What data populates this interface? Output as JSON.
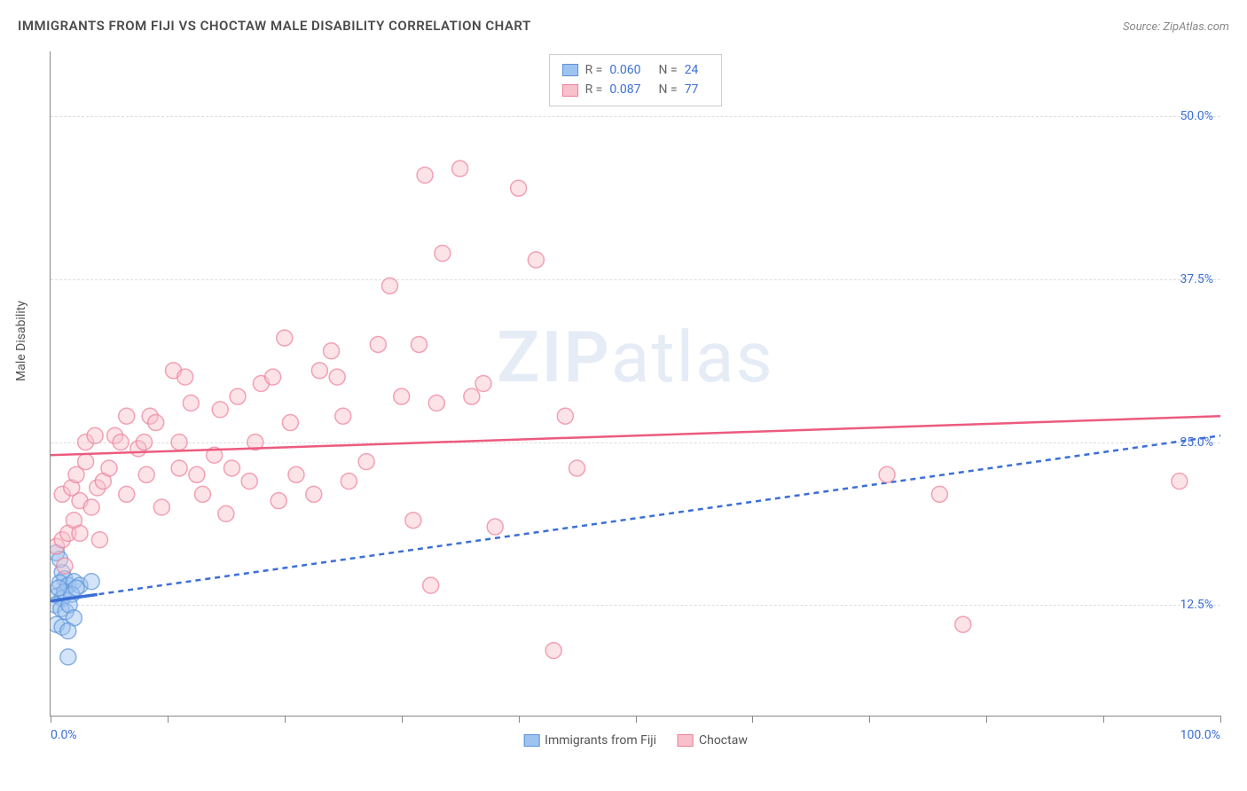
{
  "title": "IMMIGRANTS FROM FIJI VS CHOCTAW MALE DISABILITY CORRELATION CHART",
  "source": "Source: ZipAtlas.com",
  "watermark_zip": "ZIP",
  "watermark_atlas": "atlas",
  "ylabel": "Male Disability",
  "chart": {
    "type": "scatter",
    "background_color": "#ffffff",
    "grid_color": "#dddddd",
    "axis_color": "#888888",
    "xlim": [
      0,
      100
    ],
    "ylim": [
      4,
      55
    ],
    "xticks": [
      0,
      10,
      20,
      30,
      40,
      50,
      60,
      70,
      80,
      90,
      100
    ],
    "xtick_labels": {
      "0": "0.0%",
      "100": "100.0%"
    },
    "yticks": [
      12.5,
      25.0,
      37.5,
      50.0
    ],
    "ytick_labels": [
      "12.5%",
      "25.0%",
      "37.5%",
      "50.0%"
    ],
    "point_radius": 9,
    "point_opacity": 0.45,
    "point_stroke_width": 1.5,
    "trend_line_width": 2.5,
    "series": [
      {
        "name": "Immigrants from Fiji",
        "color_fill": "#9dc3f0",
        "color_stroke": "#5b93d8",
        "trend_color": "#3b6fd6",
        "trend_dash": "6,5",
        "R": "0.060",
        "N": "24",
        "trend": {
          "x1": 0,
          "y1": 12.8,
          "x2": 100,
          "y2": 25.5
        },
        "solid_segment": {
          "x1": 0,
          "y1": 12.8,
          "x2": 4,
          "y2": 13.3
        },
        "points": [
          [
            0.5,
            16.5
          ],
          [
            1.0,
            15.0
          ],
          [
            1.2,
            14.5
          ],
          [
            0.8,
            14.2
          ],
          [
            1.5,
            14.0
          ],
          [
            2.0,
            14.3
          ],
          [
            2.5,
            14.0
          ],
          [
            0.6,
            13.2
          ],
          [
            1.0,
            13.0
          ],
          [
            1.2,
            13.5
          ],
          [
            1.8,
            13.3
          ],
          [
            2.2,
            13.8
          ],
          [
            3.5,
            14.3
          ],
          [
            0.4,
            12.5
          ],
          [
            0.9,
            12.2
          ],
          [
            1.3,
            12.0
          ],
          [
            1.6,
            12.5
          ],
          [
            2.0,
            11.5
          ],
          [
            0.5,
            11.0
          ],
          [
            1.0,
            10.8
          ],
          [
            1.5,
            10.5
          ],
          [
            0.8,
            16.0
          ],
          [
            1.5,
            8.5
          ],
          [
            0.7,
            13.8
          ]
        ]
      },
      {
        "name": "Choctaw",
        "color_fill": "#f7c0cb",
        "color_stroke": "#ec7f98",
        "trend_color": "#ec5b7f",
        "trend_dash": "none",
        "R": "0.087",
        "N": "77",
        "trend": {
          "x1": 0,
          "y1": 24.0,
          "x2": 100,
          "y2": 27.0
        },
        "points": [
          [
            0.5,
            17.0
          ],
          [
            1.0,
            17.5
          ],
          [
            1.5,
            18.0
          ],
          [
            2.0,
            19.0
          ],
          [
            2.5,
            20.5
          ],
          [
            1.0,
            21.0
          ],
          [
            1.8,
            21.5
          ],
          [
            2.2,
            22.5
          ],
          [
            3.0,
            23.5
          ],
          [
            1.2,
            15.5
          ],
          [
            2.5,
            18.0
          ],
          [
            3.5,
            20.0
          ],
          [
            4.0,
            21.5
          ],
          [
            4.5,
            22.0
          ],
          [
            5.0,
            23.0
          ],
          [
            3.0,
            25.0
          ],
          [
            3.8,
            25.5
          ],
          [
            5.5,
            25.5
          ],
          [
            6.0,
            25.0
          ],
          [
            6.5,
            21.0
          ],
          [
            7.5,
            24.5
          ],
          [
            8.0,
            25.0
          ],
          [
            8.5,
            27.0
          ],
          [
            9.0,
            26.5
          ],
          [
            9.5,
            20.0
          ],
          [
            10.5,
            30.5
          ],
          [
            11.0,
            23.0
          ],
          [
            11.5,
            30.0
          ],
          [
            12.0,
            28.0
          ],
          [
            13.0,
            21.0
          ],
          [
            14.0,
            24.0
          ],
          [
            14.5,
            27.5
          ],
          [
            15.0,
            19.5
          ],
          [
            15.5,
            23.0
          ],
          [
            16.0,
            28.5
          ],
          [
            17.0,
            22.0
          ],
          [
            17.5,
            25.0
          ],
          [
            18.0,
            29.5
          ],
          [
            19.0,
            30.0
          ],
          [
            19.5,
            20.5
          ],
          [
            20.0,
            33.0
          ],
          [
            20.5,
            26.5
          ],
          [
            21.0,
            22.5
          ],
          [
            22.5,
            21.0
          ],
          [
            23.0,
            30.5
          ],
          [
            24.0,
            32.0
          ],
          [
            24.5,
            30.0
          ],
          [
            25.0,
            27.0
          ],
          [
            25.5,
            22.0
          ],
          [
            27.0,
            23.5
          ],
          [
            28.0,
            32.5
          ],
          [
            29.0,
            37.0
          ],
          [
            30.0,
            28.5
          ],
          [
            31.0,
            19.0
          ],
          [
            31.5,
            32.5
          ],
          [
            32.0,
            45.5
          ],
          [
            32.5,
            14.0
          ],
          [
            33.0,
            28.0
          ],
          [
            33.5,
            39.5
          ],
          [
            36.0,
            28.5
          ],
          [
            37.0,
            29.5
          ],
          [
            38.0,
            18.5
          ],
          [
            40.0,
            44.5
          ],
          [
            41.5,
            39.0
          ],
          [
            43.0,
            9.0
          ],
          [
            44.0,
            27.0
          ],
          [
            45.0,
            23.0
          ],
          [
            71.5,
            22.5
          ],
          [
            76.0,
            21.0
          ],
          [
            78.0,
            11.0
          ],
          [
            96.5,
            22.0
          ],
          [
            35.0,
            46.0
          ],
          [
            11.0,
            25.0
          ],
          [
            6.5,
            27.0
          ],
          [
            12.5,
            22.5
          ],
          [
            8.2,
            22.5
          ],
          [
            4.2,
            17.5
          ]
        ]
      }
    ]
  },
  "legend_top": {
    "border_color": "#cccccc",
    "R_label": "R =",
    "N_label": "N ="
  },
  "legend_bottom": {
    "items": [
      "Immigrants from Fiji",
      "Choctaw"
    ]
  },
  "colors": {
    "text_primary": "#4a4a4a",
    "text_secondary": "#888888",
    "text_blue": "#3b6fd6"
  }
}
